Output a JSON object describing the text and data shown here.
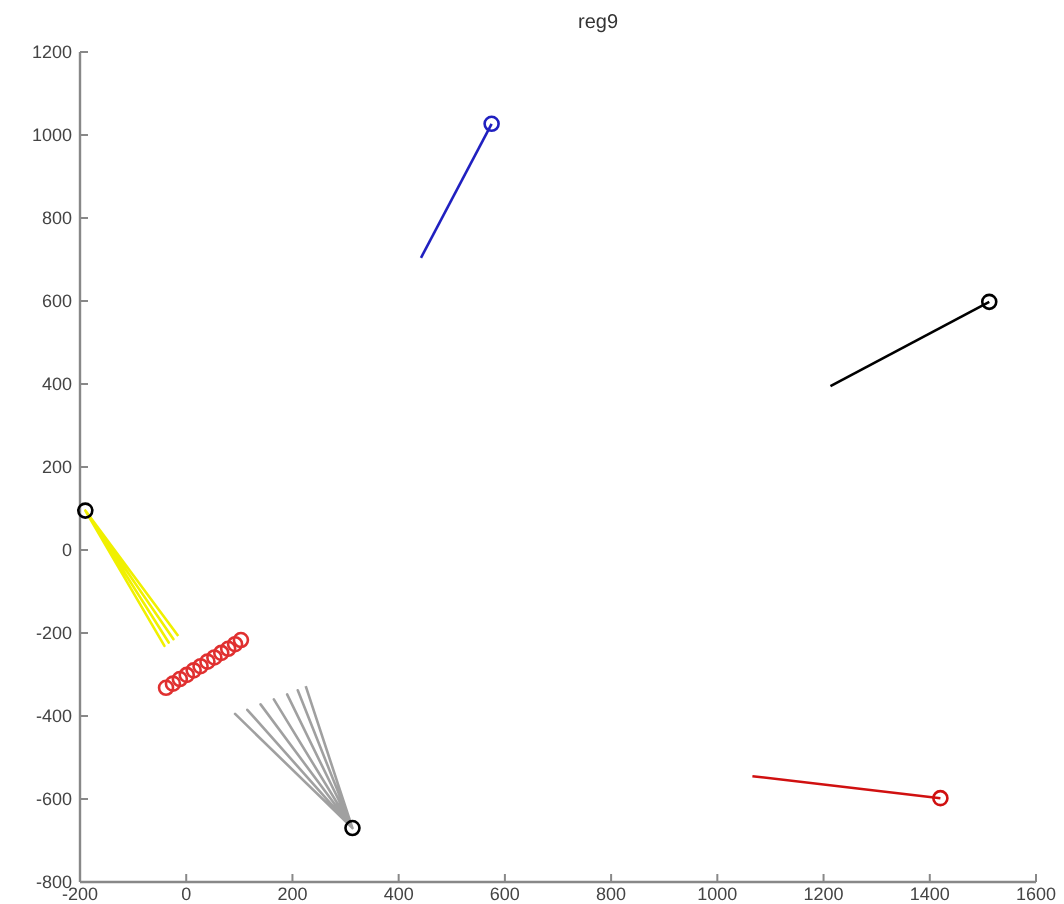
{
  "chart_data": {
    "type": "line",
    "title": "reg9",
    "xlim": [
      -200,
      1600
    ],
    "ylim": [
      -800,
      1200
    ],
    "xticks": [
      -200,
      0,
      200,
      400,
      600,
      800,
      1000,
      1200,
      1400,
      1600
    ],
    "yticks": [
      -800,
      -600,
      -400,
      -200,
      0,
      200,
      400,
      600,
      800,
      1000,
      1200
    ],
    "grid": false,
    "series": [
      {
        "color": "#2020c0",
        "x": [
          575,
          442
        ],
        "values": [
          1027,
          704
        ]
      },
      {
        "color": "#000000",
        "x": [
          1512,
          1213
        ],
        "values": [
          598,
          395
        ]
      },
      {
        "color": "#d01010",
        "x": [
          1420,
          1066
        ],
        "values": [
          -598,
          -545
        ]
      },
      {
        "color": "#f0f000",
        "x": [
          -190,
          -41,
          -190,
          -33,
          -190,
          -24,
          -190,
          -15
        ],
        "values": [
          95,
          -231,
          95,
          -223,
          95,
          -215,
          95,
          -207
        ]
      },
      {
        "color": "#a0a0a0",
        "x": [
          313,
          92,
          313,
          115,
          313,
          140,
          313,
          165,
          313,
          190,
          313,
          210,
          313,
          225
        ],
        "values": [
          -670,
          -395,
          -670,
          -385,
          -670,
          -372,
          -670,
          -360,
          -670,
          -348,
          -670,
          -338,
          -670,
          -328
        ]
      },
      {
        "type": "scatter",
        "marker": "circle",
        "color": "#e03030",
        "x": [
          -38,
          -25,
          -12,
          1,
          14,
          27,
          40,
          53,
          66,
          79,
          92,
          103
        ],
        "values": [
          -332,
          -322,
          -311,
          -301,
          -290,
          -280,
          -269,
          -259,
          -248,
          -238,
          -227,
          -217
        ]
      },
      {
        "type": "scatter",
        "marker": "circle",
        "color": "#2020c0",
        "x": [
          575
        ],
        "values": [
          1027
        ]
      },
      {
        "type": "scatter",
        "marker": "circle",
        "color": "#000000",
        "x": [
          1512,
          -190,
          313
        ],
        "values": [
          598,
          95,
          -670
        ]
      },
      {
        "type": "scatter",
        "marker": "circle",
        "color": "#d01010",
        "x": [
          1420
        ],
        "values": [
          -598
        ]
      }
    ]
  }
}
